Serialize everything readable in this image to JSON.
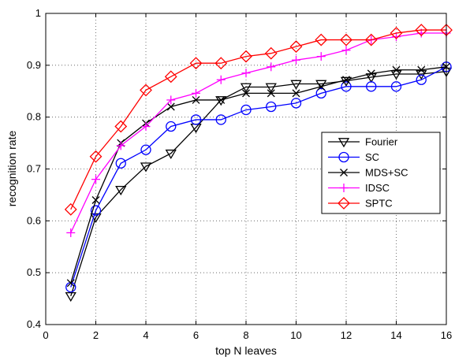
{
  "chart_data": {
    "type": "line",
    "xlabel": "top N leaves",
    "ylabel": "recognition rate",
    "xlim": [
      0,
      16
    ],
    "ylim": [
      0.4,
      1.0
    ],
    "xticks": [
      "0",
      "2",
      "4",
      "6",
      "8",
      "10",
      "12",
      "14",
      "16"
    ],
    "yticks": [
      "0.4",
      "0.5",
      "0.6",
      "0.7",
      "0.8",
      "0.9",
      "1"
    ],
    "grid": true,
    "legend_position": "center-right",
    "x": [
      1,
      2,
      3,
      4,
      5,
      6,
      7,
      8,
      9,
      10,
      11,
      12,
      13,
      14,
      15,
      16
    ],
    "series": [
      {
        "name": "Fourier",
        "color": "#000000",
        "marker": "triangle-down",
        "values": [
          0.455,
          0.607,
          0.66,
          0.705,
          0.73,
          0.78,
          0.833,
          0.858,
          0.858,
          0.864,
          0.864,
          0.87,
          0.877,
          0.883,
          0.883,
          0.888
        ]
      },
      {
        "name": "SC",
        "color": "#0000ff",
        "marker": "circle",
        "values": [
          0.472,
          0.62,
          0.711,
          0.737,
          0.782,
          0.795,
          0.795,
          0.814,
          0.82,
          0.827,
          0.846,
          0.859,
          0.859,
          0.859,
          0.872,
          0.897
        ]
      },
      {
        "name": "MDS+SC",
        "color": "#000000",
        "marker": "x",
        "values": [
          0.48,
          0.64,
          0.75,
          0.788,
          0.82,
          0.833,
          0.833,
          0.846,
          0.846,
          0.846,
          0.859,
          0.872,
          0.884,
          0.891,
          0.891,
          0.897
        ]
      },
      {
        "name": "IDSC",
        "color": "#ff00ff",
        "marker": "plus",
        "values": [
          0.577,
          0.68,
          0.745,
          0.782,
          0.833,
          0.846,
          0.872,
          0.885,
          0.897,
          0.91,
          0.917,
          0.929,
          0.949,
          0.955,
          0.962,
          0.962
        ]
      },
      {
        "name": "SPTC",
        "color": "#ff0000",
        "marker": "diamond",
        "values": [
          0.622,
          0.724,
          0.782,
          0.852,
          0.878,
          0.904,
          0.904,
          0.917,
          0.923,
          0.936,
          0.949,
          0.949,
          0.949,
          0.962,
          0.968,
          0.968
        ]
      }
    ]
  }
}
